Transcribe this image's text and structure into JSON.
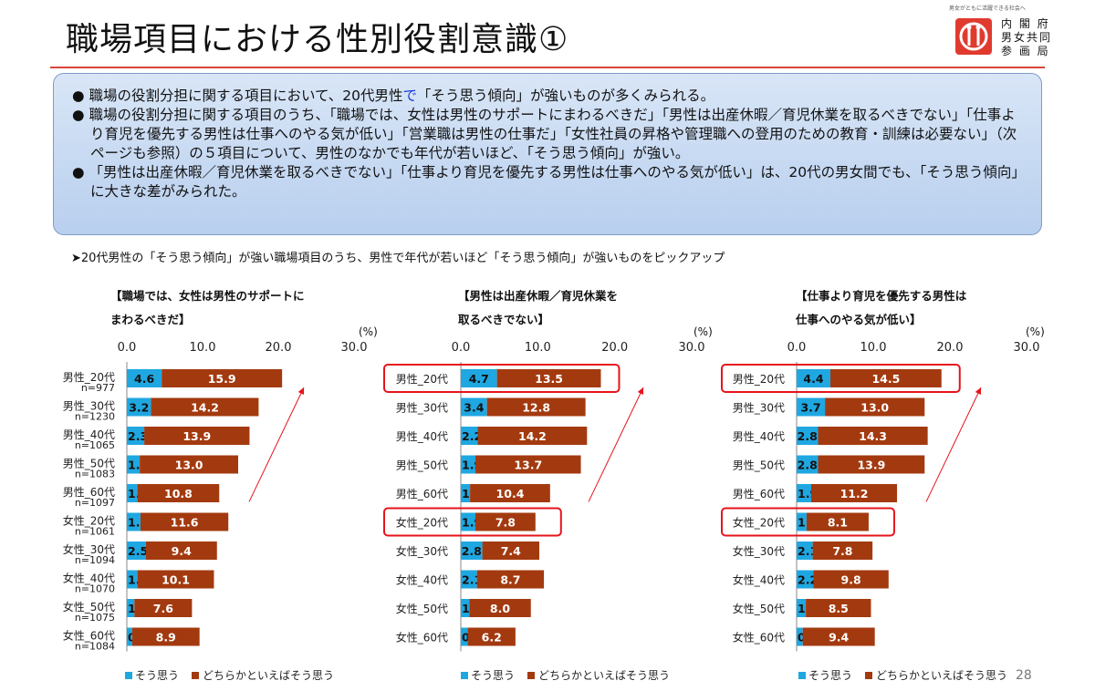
{
  "page": {
    "title": "職場項目における性別役割意識①",
    "logo_tagline": "男女がともに活躍できる社会へ",
    "logo_lines": [
      "内 閣 府",
      "男女共同",
      "参 画 局"
    ],
    "page_number": "28",
    "pickup_note": "➤20代男性の「そう思う傾向」が強い職場項目のうち、男性で年代が若いほど「そう思う傾向」が強いものをピックアップ",
    "colors": {
      "accent_red": "#e03a2f",
      "rule": "#d9453a",
      "box_fill": "#c9dbf3",
      "box_border": "#7f9cc6",
      "blue_text": "#1a39d6"
    }
  },
  "summary": {
    "b1_a": "職場の役割分担に関する項目において、20代男性",
    "b1_blue": "で",
    "b1_b": "「そう思う傾向」が強いものが多くみられる。",
    "b2": "職場の役割分担に関する項目のうち、「職場では、女性は男性のサポートにまわるべきだ」「男性は出産休暇／育児休業を取るべきでない」「仕事より育児を優先する男性は仕事へのやる気が低い」「営業職は男性の仕事だ」「女性社員の昇格や管理職への登用のための教育・訓練は必要ない」（次ページも参照）の５項目について、男性のなかでも年代が若いほど、「そう思う傾向」が強い。",
    "b3": "「男性は出産休暇／育児休業を取るべきでない」「仕事より育児を優先する男性は仕事へのやる気が低い」は、20代の男女間でも、「そう思う傾向」に大きな差がみられた。"
  },
  "chart_data": [
    {
      "type": "bar",
      "stacked": true,
      "orientation": "horizontal",
      "title_lines": [
        "【職場では、女性は男性のサポートに",
        "まわるべきだ】"
      ],
      "unit": "(%)",
      "xlim": [
        0,
        30
      ],
      "xticks": [
        "0.0",
        "10.0",
        "20.0",
        "30.0"
      ],
      "categories": [
        "男性_20代",
        "男性_30代",
        "男性_40代",
        "男性_50代",
        "男性_60代",
        "女性_20代",
        "女性_30代",
        "女性_40代",
        "女性_50代",
        "女性_60代"
      ],
      "n_labels": [
        "n=977",
        "n=1230",
        "n=1065",
        "n=1083",
        "n=1097",
        "n=1061",
        "n=1094",
        "n=1070",
        "n=1075",
        "n=1084"
      ],
      "series": [
        {
          "name": "そう思う",
          "color": "#1fa7e1",
          "values": [
            4.6,
            3.2,
            2.3,
            1.7,
            1.4,
            1.8,
            2.5,
            1.4,
            1.0,
            0.7
          ]
        },
        {
          "name": "どちらかといえばそう思う",
          "color": "#a33a0f",
          "values": [
            15.9,
            14.2,
            13.9,
            13.0,
            10.8,
            11.6,
            9.4,
            10.1,
            7.6,
            8.9
          ]
        }
      ],
      "highlight": [],
      "legend": "bottom"
    },
    {
      "type": "bar",
      "stacked": true,
      "orientation": "horizontal",
      "title_lines": [
        "【男性は出産休暇／育児休業を",
        "取るべきでない】"
      ],
      "unit": "(%)",
      "xlim": [
        0,
        30
      ],
      "xticks": [
        "0.0",
        "10.0",
        "20.0",
        "30.0"
      ],
      "categories": [
        "男性_20代",
        "男性_30代",
        "男性_40代",
        "男性_50代",
        "男性_60代",
        "女性_20代",
        "女性_30代",
        "女性_40代",
        "女性_50代",
        "女性_60代"
      ],
      "n_labels": [],
      "series": [
        {
          "name": "そう思う",
          "color": "#1fa7e1",
          "values": [
            4.7,
            3.4,
            2.2,
            1.9,
            1.2,
            1.9,
            2.8,
            2.1,
            1.1,
            0.9
          ]
        },
        {
          "name": "どちらかといえばそう思う",
          "color": "#a33a0f",
          "values": [
            13.5,
            12.8,
            14.2,
            13.7,
            10.4,
            7.8,
            7.4,
            8.7,
            8.0,
            6.2
          ]
        }
      ],
      "highlight": [
        0,
        5
      ],
      "legend": "bottom"
    },
    {
      "type": "bar",
      "stacked": true,
      "orientation": "horizontal",
      "title_lines": [
        "【仕事より育児を優先する男性は",
        "仕事へのやる気が低い】"
      ],
      "unit": "(%)",
      "xlim": [
        0,
        30
      ],
      "xticks": [
        "0.0",
        "10.0",
        "20.0",
        "30.0"
      ],
      "categories": [
        "男性_20代",
        "男性_30代",
        "男性_40代",
        "男性_50代",
        "男性_60代",
        "女性_20代",
        "女性_30代",
        "女性_40代",
        "女性_50代",
        "女性_60代"
      ],
      "n_labels": [],
      "series": [
        {
          "name": "そう思う",
          "color": "#1fa7e1",
          "values": [
            4.4,
            3.7,
            2.8,
            2.8,
            1.9,
            1.3,
            2.1,
            2.2,
            1.2,
            0.8
          ]
        },
        {
          "name": "どちらかといえばそう思う",
          "color": "#a33a0f",
          "values": [
            14.5,
            13.0,
            14.3,
            13.9,
            11.2,
            8.1,
            7.8,
            9.8,
            8.5,
            9.4
          ]
        }
      ],
      "highlight": [
        0,
        5
      ],
      "legend": "bottom"
    }
  ]
}
